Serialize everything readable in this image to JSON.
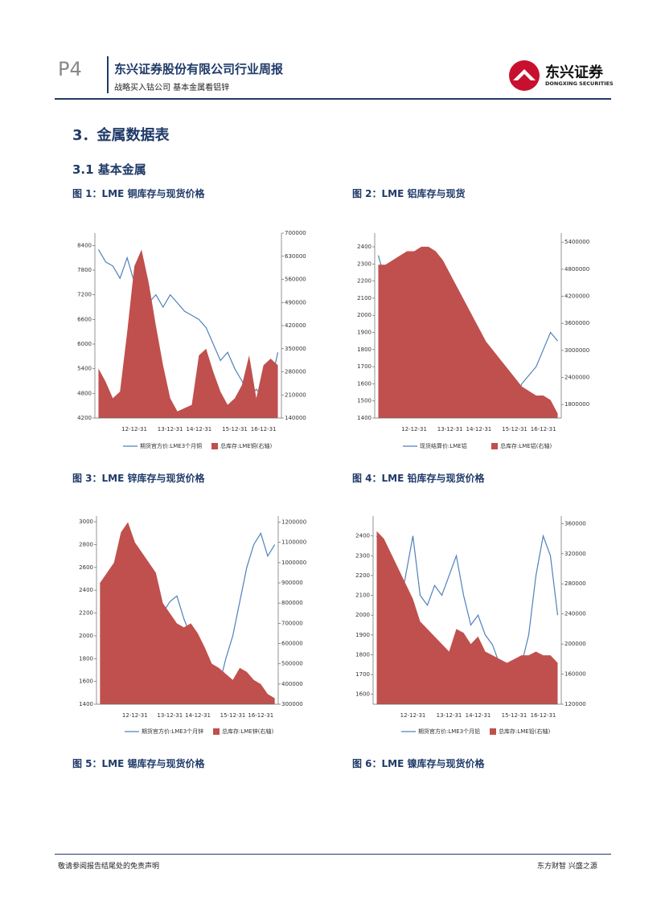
{
  "header": {
    "page": "P4",
    "title": "东兴证券股份有限公司行业周报",
    "subtitle": "战略买入钴公司 基本金属看铝锌",
    "logo": "东兴证券",
    "logo_en": "DONGXING SECURITIES"
  },
  "section": "3．金属数据表",
  "subsection": "3.1  基本金属",
  "captions": [
    "图 1：LME 铜库存与现货价格",
    "图 2：LME 铝库存与现货",
    "图 3：LME 锌库存与现货价格",
    "图 4：LME 铅库存与现货价格",
    "图 5：LME 锡库存与现货价格",
    "图 6：LME 镍库存与现货价格"
  ],
  "chart_data": [
    {
      "type": "combo",
      "categories": [
        null,
        null,
        null,
        null,
        null,
        "12-12-31",
        null,
        null,
        null,
        null,
        "13-12-31",
        null,
        null,
        null,
        "14-12-31",
        null,
        null,
        null,
        null,
        "15-12-31",
        null,
        null,
        null,
        "16-12-31",
        null,
        null
      ],
      "ylim": [
        4200,
        8700
      ],
      "yticks": [
        4200,
        4800,
        5400,
        6000,
        6600,
        7200,
        7800,
        8400
      ],
      "y2lim": [
        140000,
        700000
      ],
      "y2ticks": [
        140000,
        210000,
        280000,
        350000,
        420000,
        490000,
        560000,
        630000,
        700000
      ],
      "series": [
        {
          "name": "期货官方价:LME3个月铜",
          "color": "#4f81bd",
          "kind": "line",
          "values": [
            8300,
            8000,
            7900,
            7600,
            8100,
            7500,
            7200,
            7000,
            7200,
            6900,
            7200,
            7000,
            6800,
            6700,
            6600,
            6400,
            6000,
            5600,
            5800,
            5400,
            5100,
            4700,
            4900,
            4700,
            5000,
            5800
          ]
        },
        {
          "name": "总库存:LME铜(右轴)",
          "color": "#c0504d",
          "kind": "area",
          "axis": "y2",
          "values": [
            290000,
            250000,
            200000,
            220000,
            400000,
            600000,
            650000,
            550000,
            420000,
            300000,
            200000,
            160000,
            170000,
            180000,
            330000,
            350000,
            280000,
            220000,
            180000,
            200000,
            240000,
            330000,
            200000,
            300000,
            320000,
            300000
          ]
        }
      ]
    },
    {
      "type": "combo",
      "categories": [
        null,
        null,
        null,
        null,
        null,
        "12-12-31",
        null,
        null,
        null,
        null,
        "13-12-31",
        null,
        null,
        null,
        "14-12-31",
        null,
        null,
        null,
        null,
        "15-12-31",
        null,
        null,
        null,
        "16-12-31",
        null,
        null
      ],
      "ylim": [
        1400,
        2480
      ],
      "yticks": [
        1400,
        1500,
        1600,
        1700,
        1800,
        1900,
        2000,
        2100,
        2200,
        2300,
        2400
      ],
      "y2lim": [
        1500000,
        5600000
      ],
      "y2ticks": [
        1800000,
        2400000,
        3000000,
        3600000,
        4200000,
        4800000,
        5400000
      ],
      "series": [
        {
          "name": "现货结算价:LME铝",
          "color": "#4f81bd",
          "kind": "line",
          "values": [
            2350,
            2200,
            2100,
            2000,
            2150,
            1950,
            1850,
            1800,
            1800,
            1850,
            2000,
            1900,
            1800,
            1750,
            1650,
            1550,
            1500,
            1550,
            1600,
            1500,
            1600,
            1650,
            1700,
            1800,
            1900,
            1850
          ]
        },
        {
          "name": "总库存:LME铝(右轴)",
          "color": "#c0504d",
          "kind": "area",
          "axis": "y2",
          "values": [
            4900000,
            4900000,
            5000000,
            5100000,
            5200000,
            5200000,
            5300000,
            5300000,
            5200000,
            5000000,
            4700000,
            4400000,
            4100000,
            3800000,
            3500000,
            3200000,
            3000000,
            2800000,
            2600000,
            2400000,
            2200000,
            2100000,
            2000000,
            2000000,
            1900000,
            1600000
          ]
        }
      ]
    },
    {
      "type": "combo",
      "categories": [
        null,
        null,
        null,
        null,
        null,
        "12-12-31",
        null,
        null,
        null,
        null,
        "13-12-31",
        null,
        null,
        null,
        "14-12-31",
        null,
        null,
        null,
        null,
        "15-12-31",
        null,
        null,
        null,
        "16-12-31",
        null,
        null
      ],
      "ylim": [
        1400,
        3050
      ],
      "yticks": [
        1400,
        1600,
        1800,
        2000,
        2200,
        2400,
        2600,
        2800,
        3000
      ],
      "y2lim": [
        300000,
        1230000
      ],
      "y2ticks": [
        300000,
        400000,
        500000,
        600000,
        700000,
        800000,
        900000,
        1000000,
        1100000,
        1200000
      ],
      "series": [
        {
          "name": "期货官方价:LME3个月锌",
          "color": "#4f81bd",
          "kind": "line",
          "values": [
            2000,
            1900,
            2050,
            1950,
            1900,
            1850,
            2050,
            2100,
            2000,
            2200,
            2300,
            2350,
            2150,
            2000,
            1800,
            1700,
            1600,
            1550,
            1800,
            2000,
            2300,
            2600,
            2800,
            2900,
            2700,
            2800
          ]
        },
        {
          "name": "总库存:LME锌(右轴)",
          "color": "#c0504d",
          "kind": "area",
          "axis": "y2",
          "values": [
            900000,
            950000,
            1000000,
            1150000,
            1200000,
            1100000,
            1050000,
            1000000,
            950000,
            800000,
            750000,
            700000,
            680000,
            700000,
            650000,
            580000,
            500000,
            480000,
            450000,
            420000,
            480000,
            460000,
            420000,
            400000,
            350000,
            330000
          ]
        }
      ]
    },
    {
      "type": "combo",
      "categories": [
        null,
        null,
        null,
        null,
        null,
        "12-12-31",
        null,
        null,
        null,
        null,
        "13-12-31",
        null,
        null,
        null,
        "14-12-31",
        null,
        null,
        null,
        null,
        "15-12-31",
        null,
        null,
        null,
        "16-12-31",
        null,
        null
      ],
      "ylim": [
        1550,
        2500
      ],
      "yticks": [
        1600,
        1700,
        1800,
        1900,
        2000,
        2100,
        2200,
        2300,
        2400
      ],
      "y2lim": [
        120000,
        370000
      ],
      "y2ticks": [
        120000,
        160000,
        200000,
        240000,
        280000,
        320000,
        360000
      ],
      "series": [
        {
          "name": "期货官方价:LME3个月铅",
          "color": "#4f81bd",
          "kind": "line",
          "values": [
            2400,
            2300,
            2100,
            2000,
            2200,
            2400,
            2100,
            2050,
            2150,
            2100,
            2200,
            2300,
            2100,
            1950,
            2000,
            1900,
            1850,
            1750,
            1700,
            1650,
            1750,
            1900,
            2200,
            2400,
            2300,
            2000
          ]
        },
        {
          "name": "总库存:LME铅(右轴)",
          "color": "#c0504d",
          "kind": "area",
          "axis": "y2",
          "values": [
            350000,
            340000,
            320000,
            300000,
            280000,
            260000,
            230000,
            220000,
            210000,
            200000,
            190000,
            220000,
            215000,
            200000,
            210000,
            190000,
            185000,
            180000,
            175000,
            180000,
            185000,
            185000,
            190000,
            185000,
            185000,
            175000
          ]
        }
      ]
    }
  ],
  "footer": {
    "left": "敬请参阅报告结尾处的免责声明",
    "right": "东方财智 兴盛之源"
  }
}
